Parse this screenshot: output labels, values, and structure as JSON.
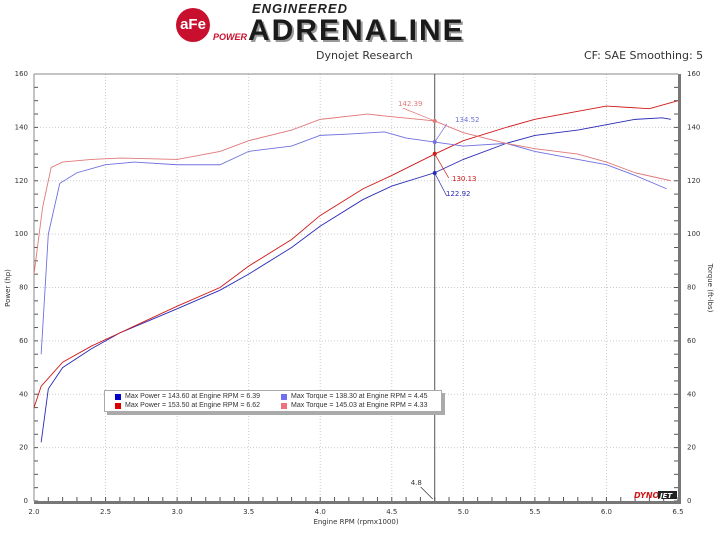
{
  "header": {
    "logo_text": "aFe POWER ENGINEERED ADRENALINE",
    "subtitle": "Dynojet Research",
    "correction": "CF: SAE Smoothing: 5"
  },
  "chart_data": {
    "type": "line",
    "xlabel": "Engine RPM (rpmx1000)",
    "ylabel": "Power (hp)",
    "y2label": "Torque (ft-lbs)",
    "xlim": [
      2.0,
      6.5
    ],
    "ylim": [
      0,
      160
    ],
    "y2lim": [
      0,
      160
    ],
    "xticks": [
      "2.0",
      "2.5",
      "3.0",
      "3.5",
      "4.0",
      "4.5",
      "5.0",
      "5.5",
      "6.0",
      "6.5"
    ],
    "yticks": [
      "0",
      "20",
      "40",
      "60",
      "80",
      "100",
      "120",
      "140",
      "160"
    ],
    "grid": true,
    "cursor": {
      "x": 4.8,
      "label": "4.8"
    },
    "series": [
      {
        "color": "#2a2ab8",
        "axis": "left",
        "x": [
          2.05,
          2.1,
          2.2,
          2.4,
          2.6,
          3.0,
          3.3,
          3.5,
          3.8,
          4.0,
          4.3,
          4.5,
          4.8,
          5.0,
          5.3,
          5.5,
          5.8,
          6.0,
          6.2,
          6.39,
          6.45
        ],
        "values": [
          22,
          42,
          50,
          57,
          63,
          72,
          79,
          85,
          95,
          103,
          113,
          118,
          123,
          128,
          134,
          137,
          139,
          141,
          143,
          143.6,
          143
        ]
      },
      {
        "color": "#d01818",
        "axis": "left",
        "x": [
          2.0,
          2.05,
          2.2,
          2.4,
          2.6,
          3.0,
          3.3,
          3.5,
          3.8,
          4.0,
          4.3,
          4.5,
          4.8,
          5.0,
          5.3,
          5.5,
          5.8,
          6.0,
          6.3,
          6.5
        ],
        "values": [
          35,
          43,
          52,
          58,
          63,
          73,
          80,
          88,
          98,
          107,
          117,
          122,
          130,
          135,
          140,
          143,
          146,
          148,
          147,
          150
        ]
      },
      {
        "color": "#7070e0",
        "axis": "right",
        "x": [
          2.05,
          2.1,
          2.18,
          2.3,
          2.5,
          2.7,
          3.0,
          3.3,
          3.5,
          3.8,
          4.0,
          4.2,
          4.45,
          4.6,
          4.8,
          5.0,
          5.3,
          5.5,
          5.8,
          6.0,
          6.2,
          6.42
        ],
        "values": [
          55,
          100,
          119,
          123,
          126,
          127,
          126,
          126,
          131,
          133,
          137,
          137.5,
          138.3,
          136,
          134.5,
          133,
          134,
          131,
          128,
          126,
          122,
          117
        ]
      },
      {
        "color": "#e07878",
        "axis": "right",
        "x": [
          2.0,
          2.06,
          2.12,
          2.2,
          2.4,
          2.6,
          3.0,
          3.3,
          3.5,
          3.8,
          4.0,
          4.33,
          4.5,
          4.8,
          5.0,
          5.3,
          5.5,
          5.8,
          6.0,
          6.2,
          6.45
        ],
        "values": [
          85,
          110,
          125,
          127,
          128,
          128.5,
          128,
          131,
          135,
          139,
          143,
          145,
          144,
          142.4,
          138,
          134,
          132,
          130,
          127,
          123,
          120
        ]
      }
    ],
    "annotations": [
      {
        "text": "142.39",
        "color": "#e07878"
      },
      {
        "text": "134.52",
        "color": "#7070e0"
      },
      {
        "text": "130.13",
        "color": "#d01818"
      },
      {
        "text": "122.92",
        "color": "#2a2ab8"
      }
    ],
    "legend": {
      "placement": "bottom-left",
      "entries": [
        {
          "text": "Max Power = 143.60 at Engine RPM = 6.39",
          "color": "#0000cc"
        },
        {
          "text": "Max Torque = 138.30 at Engine RPM = 4.45",
          "color": "#7070f0"
        },
        {
          "text": "Max Power = 153.50 at Engine RPM = 6.62",
          "color": "#dd0000"
        },
        {
          "text": "Max Torque = 145.03 at Engine RPM = 4.33",
          "color": "#f07080"
        }
      ]
    },
    "watermark": "DYNOJET"
  }
}
